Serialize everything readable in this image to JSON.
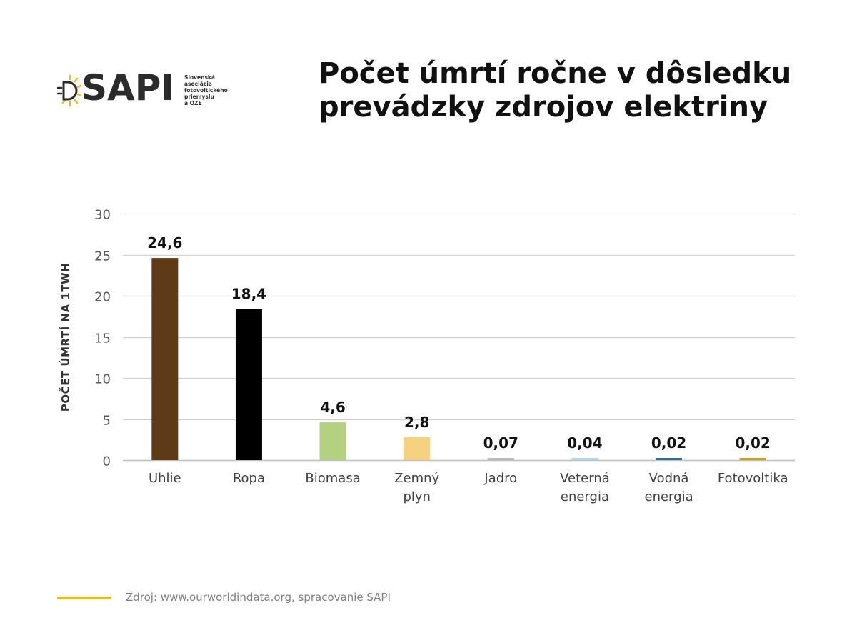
{
  "logo": {
    "brand": "SAPI",
    "icon": "sun-bulb-icon",
    "subtitle_lines": [
      "Slovenská",
      "asociácia",
      "fotovoltického",
      "priemyslu",
      "a OZE"
    ]
  },
  "title_lines": [
    "Počet úmrtí ročne v dôsledku",
    "prevádzky zdrojov elektriny"
  ],
  "source": "Zdroj: www.ourworldindata.org, spracovanie SAPI",
  "colors": {
    "accent": "#f5b51e",
    "grid": "#d0d0d0",
    "axis": "#bfbfbf"
  },
  "chart_data": {
    "type": "bar",
    "title": "Počet úmrtí ročne v dôsledku prevádzky zdrojov elektriny",
    "ylabel": "POČET ÚMRTÍ NA 1TWH",
    "xlabel": "",
    "ylim": [
      0,
      30
    ],
    "yticks": [
      0,
      5,
      10,
      15,
      20,
      25,
      30
    ],
    "grid": true,
    "categories": [
      [
        "Uhlie"
      ],
      [
        "Ropa"
      ],
      [
        "Biomasa"
      ],
      [
        "Zemný",
        "plyn"
      ],
      [
        "Jadro"
      ],
      [
        "Veterná",
        "energia"
      ],
      [
        "Vodná",
        "energia"
      ],
      [
        "Fotovoltika"
      ]
    ],
    "values": [
      24.6,
      18.4,
      4.6,
      2.8,
      0.07,
      0.04,
      0.02,
      0.02
    ],
    "value_labels": [
      "24,6",
      "18,4",
      "4,6",
      "2,8",
      "0,07",
      "0,04",
      "0,02",
      "0,02"
    ],
    "bar_colors": [
      "#5e3a17",
      "#000000",
      "#b3d17e",
      "#f5d27f",
      "#b8b8b8",
      "#b9d7ea",
      "#2f6a9a",
      "#c8a21e"
    ]
  }
}
